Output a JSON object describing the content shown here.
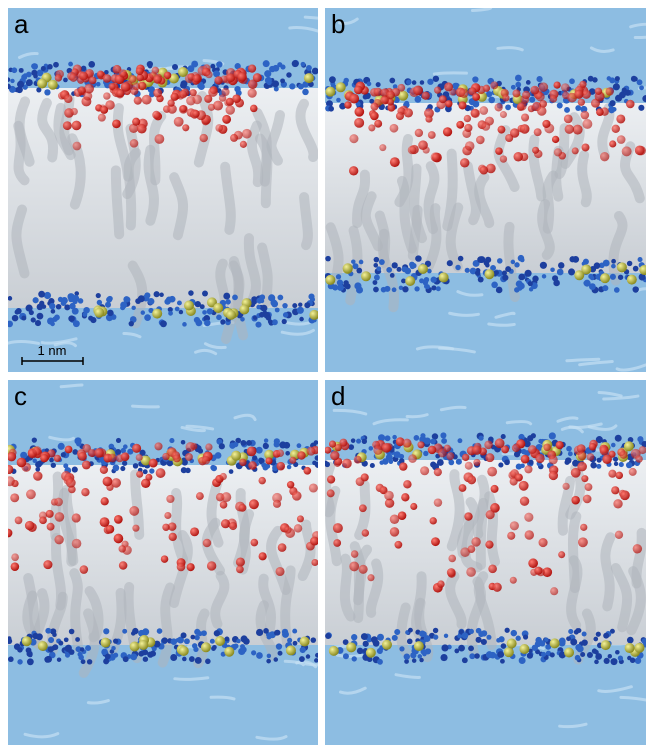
{
  "panels": [
    {
      "label": "a"
    },
    {
      "label": "b"
    },
    {
      "label": "c"
    },
    {
      "label": "d"
    }
  ],
  "scale_bar": {
    "label": "1 nm"
  }
}
